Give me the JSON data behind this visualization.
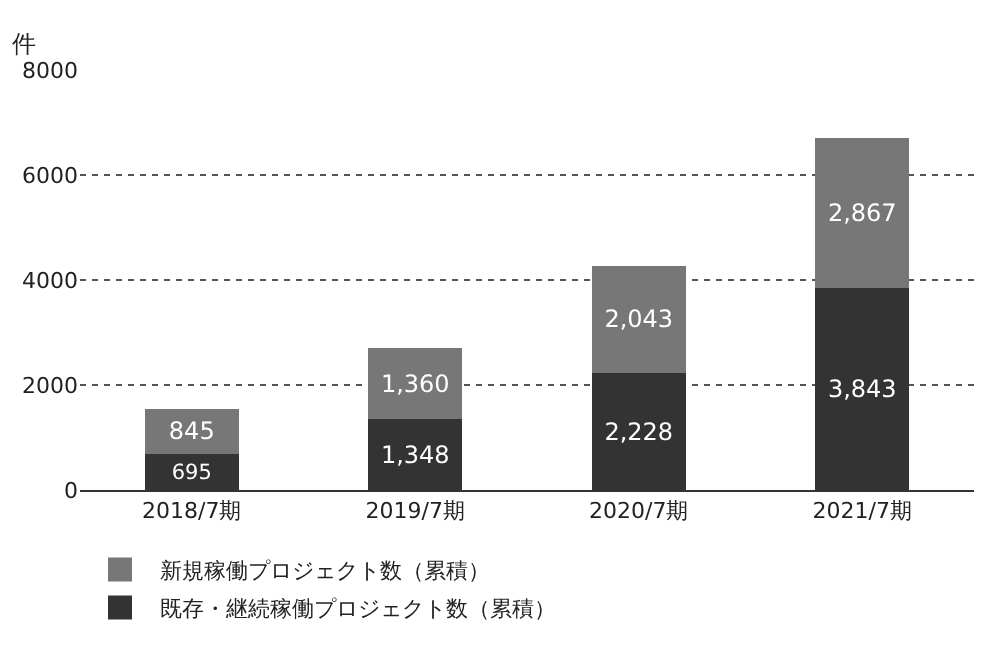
{
  "chart_data": {
    "type": "bar",
    "stacked": true,
    "ylabel": "件",
    "categories": [
      "2018/7期",
      "2019/7期",
      "2020/7期",
      "2021/7期"
    ],
    "series": [
      {
        "name": "既存・継続稼働プロジェクト数（累積）",
        "color": "#333333",
        "values": [
          695,
          1348,
          2228,
          3843
        ],
        "value_labels": [
          "695",
          "1,348",
          "2,228",
          "3,843"
        ]
      },
      {
        "name": "新規稼働プロジェクト数（累積）",
        "color": "#777777",
        "values": [
          845,
          1360,
          2043,
          2867
        ],
        "value_labels": [
          "845",
          "1,360",
          "2,043",
          "2,867"
        ]
      }
    ],
    "ylim": [
      0,
      8000
    ],
    "yticks": [
      0,
      2000,
      4000,
      6000,
      8000
    ],
    "grid": "y",
    "legend": "bottom"
  }
}
